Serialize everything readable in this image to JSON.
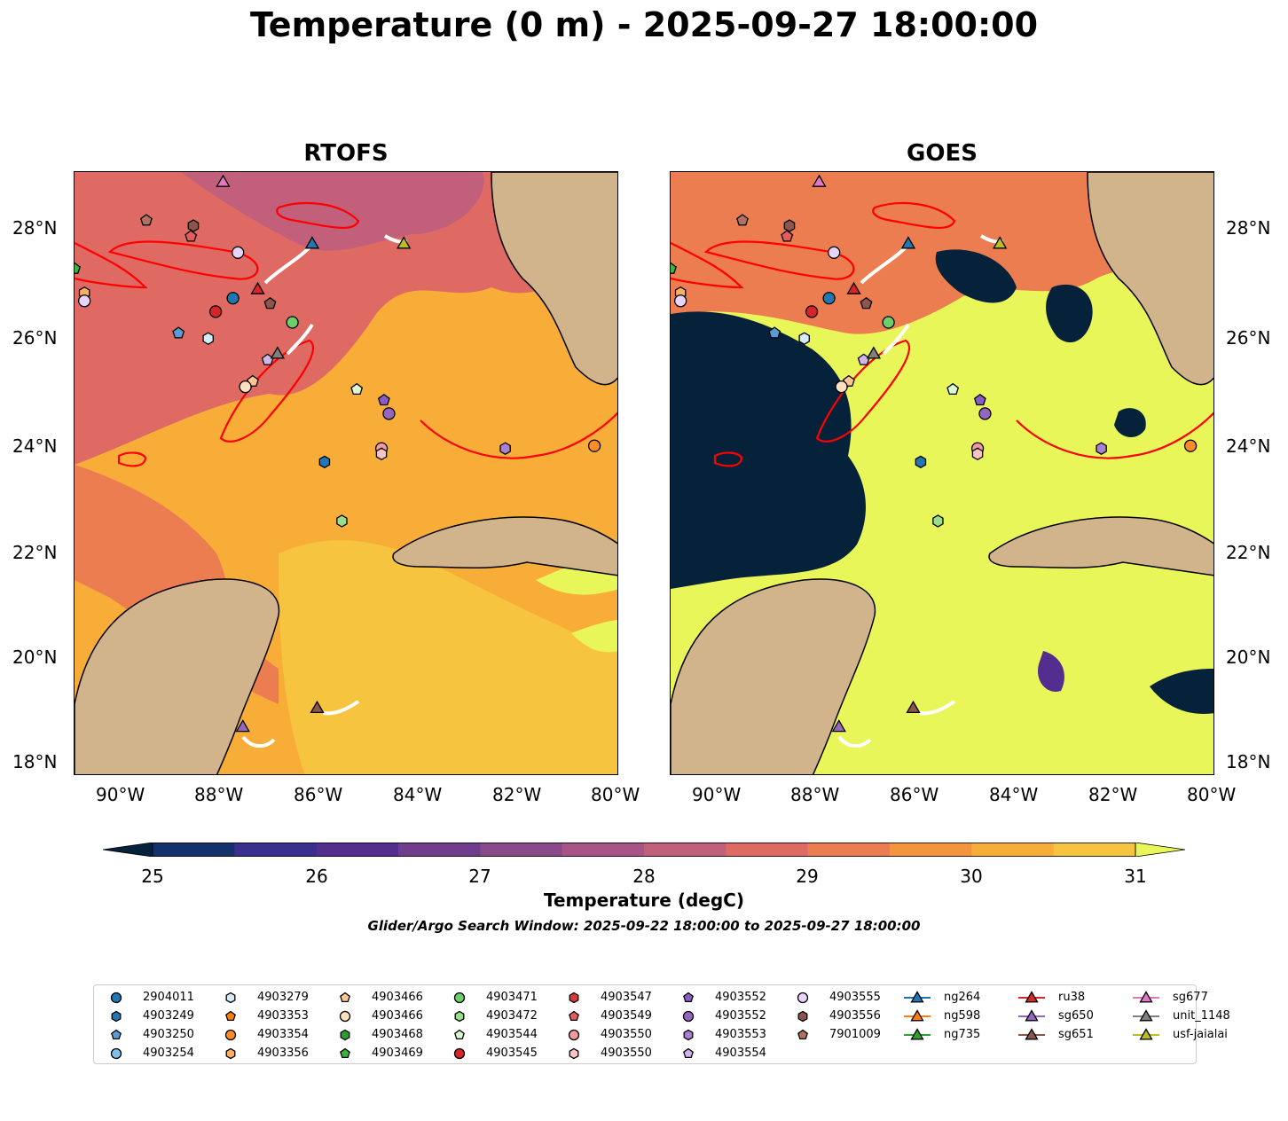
{
  "title": "Temperature (0 m) - 2025-09-27 18:00:00",
  "panels": [
    {
      "name": "RTOFS"
    },
    {
      "name": "GOES"
    }
  ],
  "axes": {
    "x_ticks": [
      "90°W",
      "88°W",
      "86°W",
      "84°W",
      "82°W",
      "80°W"
    ],
    "y_ticks": [
      "28°N",
      "26°N",
      "24°N",
      "22°N",
      "20°N",
      "18°N"
    ]
  },
  "colorbar": {
    "label": "Temperature (degC)",
    "ticks": [
      "25",
      "26",
      "27",
      "28",
      "29",
      "30",
      "31"
    ],
    "range": [
      25,
      31
    ],
    "colors": [
      "#06223a",
      "#13316b",
      "#3a2f8e",
      "#532e8f",
      "#6f3d8b",
      "#8a4a8a",
      "#a85487",
      "#c25f7a",
      "#de6a63",
      "#ec7d50",
      "#f4953d",
      "#f7ad38",
      "#f7c43f",
      "#e9f65a"
    ]
  },
  "search_window": "Glider/Argo Search Window: 2025-09-22 18:00:00 to 2025-09-27 18:00:00",
  "legend": [
    {
      "label": "2904011",
      "marker": "circle",
      "color": "#1f77b4"
    },
    {
      "label": "4903249",
      "marker": "hexagon",
      "color": "#1f77b4"
    },
    {
      "label": "4903250",
      "marker": "pentagon",
      "color": "#5a9bd5"
    },
    {
      "label": "4903254",
      "marker": "circle",
      "color": "#7fbfe8"
    },
    {
      "label": "4903279",
      "marker": "hexagon",
      "color": "#d6ecfa"
    },
    {
      "label": "4903353",
      "marker": "pentagon",
      "color": "#ff7f0e"
    },
    {
      "label": "4903354",
      "marker": "circle",
      "color": "#ff8c28"
    },
    {
      "label": "4903356",
      "marker": "hexagon",
      "color": "#ffae62"
    },
    {
      "label": "4903466",
      "marker": "pentagon",
      "color": "#ffc890"
    },
    {
      "label": "4903466",
      "marker": "circle",
      "color": "#ffe0c0"
    },
    {
      "label": "4903468",
      "marker": "hexagon",
      "color": "#2ca02c"
    },
    {
      "label": "4903469",
      "marker": "pentagon",
      "color": "#3cb43c"
    },
    {
      "label": "4903471",
      "marker": "circle",
      "color": "#6ccf6c"
    },
    {
      "label": "4903472",
      "marker": "hexagon",
      "color": "#98df8a"
    },
    {
      "label": "4903544",
      "marker": "pentagon",
      "color": "#dcf7d2"
    },
    {
      "label": "4903545",
      "marker": "circle",
      "color": "#d62728"
    },
    {
      "label": "4903547",
      "marker": "hexagon",
      "color": "#d83a3a"
    },
    {
      "label": "4903549",
      "marker": "pentagon",
      "color": "#e35d5d"
    },
    {
      "label": "4903550",
      "marker": "circle",
      "color": "#f09c9c"
    },
    {
      "label": "4903550",
      "marker": "hexagon",
      "color": "#f9c4c4"
    },
    {
      "label": "4903552",
      "marker": "pentagon",
      "color": "#8a5cc4"
    },
    {
      "label": "4903552",
      "marker": "circle",
      "color": "#9467bd"
    },
    {
      "label": "4903553",
      "marker": "hexagon",
      "color": "#a981d2"
    },
    {
      "label": "4903554",
      "marker": "pentagon",
      "color": "#d1b6ee"
    },
    {
      "label": "4903555",
      "marker": "circle",
      "color": "#e7d4fa"
    },
    {
      "label": "4903556",
      "marker": "hexagon",
      "color": "#8c564b"
    },
    {
      "label": "7901009",
      "marker": "pentagon",
      "color": "#b0735f"
    },
    {
      "label": "ng264",
      "marker": "triangle",
      "color": "#1f77b4"
    },
    {
      "label": "ng598",
      "marker": "triangle",
      "color": "#ff7f0e"
    },
    {
      "label": "ng735",
      "marker": "triangle",
      "color": "#2ca02c"
    },
    {
      "label": "ru38",
      "marker": "triangle",
      "color": "#d62728"
    },
    {
      "label": "sg650",
      "marker": "triangle",
      "color": "#9467bd"
    },
    {
      "label": "sg651",
      "marker": "triangle",
      "color": "#8c564b"
    },
    {
      "label": "sg677",
      "marker": "triangle",
      "color": "#e377c2"
    },
    {
      "label": "unit_1148",
      "marker": "triangle",
      "color": "#7f7f7f"
    },
    {
      "label": "usf-jaialai",
      "marker": "triangle",
      "color": "#bcbd22"
    }
  ],
  "map_data": {
    "extent": {
      "lon": [
        -91,
        -80
      ],
      "lat": [
        17.75,
        29
      ]
    },
    "points": [
      {
        "label": "2904011",
        "lon": -87.8,
        "lat": 26.65,
        "marker": "circle",
        "color": "#1f77b4"
      },
      {
        "label": "4903249",
        "lon": -85.95,
        "lat": 23.6,
        "marker": "hexagon",
        "color": "#1f77b4"
      },
      {
        "label": "4903250",
        "lon": -88.9,
        "lat": 26.0,
        "marker": "pentagon",
        "color": "#5a9bd5"
      },
      {
        "label": "4903279",
        "lon": -88.3,
        "lat": 25.9,
        "marker": "hexagon",
        "color": "#d6ecfa"
      },
      {
        "label": "4903354",
        "lon": -80.5,
        "lat": 23.9,
        "marker": "circle",
        "color": "#ff8c28"
      },
      {
        "label": "4903356",
        "lon": -90.8,
        "lat": 26.75,
        "marker": "hexagon",
        "color": "#ffae62"
      },
      {
        "label": "4903466",
        "lon": -87.4,
        "lat": 25.1,
        "marker": "pentagon",
        "color": "#ffc890"
      },
      {
        "label": "4903466",
        "lon": -87.55,
        "lat": 25.0,
        "marker": "circle",
        "color": "#ffe0c0"
      },
      {
        "label": "4903469",
        "lon": -91.0,
        "lat": 27.2,
        "marker": "pentagon",
        "color": "#3cb43c"
      },
      {
        "label": "4903471",
        "lon": -86.6,
        "lat": 26.2,
        "marker": "circle",
        "color": "#6ccf6c"
      },
      {
        "label": "4903472",
        "lon": -85.6,
        "lat": 22.5,
        "marker": "hexagon",
        "color": "#98df8a"
      },
      {
        "label": "4903544",
        "lon": -85.3,
        "lat": 24.95,
        "marker": "pentagon",
        "color": "#dcf7d2"
      },
      {
        "label": "4903545",
        "lon": -88.15,
        "lat": 26.4,
        "marker": "circle",
        "color": "#d62728"
      },
      {
        "label": "4903549",
        "lon": -88.65,
        "lat": 27.8,
        "marker": "pentagon",
        "color": "#e35d5d"
      },
      {
        "label": "4903550",
        "lon": -84.8,
        "lat": 23.85,
        "marker": "circle",
        "color": "#f09c9c"
      },
      {
        "label": "4903550",
        "lon": -84.8,
        "lat": 23.75,
        "marker": "hexagon",
        "color": "#f9c4c4"
      },
      {
        "label": "4903552",
        "lon": -84.75,
        "lat": 24.75,
        "marker": "pentagon",
        "color": "#8a5cc4"
      },
      {
        "label": "4903552",
        "lon": -84.65,
        "lat": 24.5,
        "marker": "circle",
        "color": "#9467bd"
      },
      {
        "label": "4903553",
        "lon": -82.3,
        "lat": 23.85,
        "marker": "hexagon",
        "color": "#a981d2"
      },
      {
        "label": "4903554",
        "lon": -87.1,
        "lat": 25.5,
        "marker": "pentagon",
        "color": "#d1b6ee"
      },
      {
        "label": "4903555",
        "lon": -87.7,
        "lat": 27.5,
        "marker": "circle",
        "color": "#e7d4fa"
      },
      {
        "label": "4903555",
        "lon": -90.8,
        "lat": 26.6,
        "marker": "circle",
        "color": "#e7d4fa"
      },
      {
        "label": "4903556",
        "lon": -88.6,
        "lat": 28.0,
        "marker": "hexagon",
        "color": "#8c564b"
      },
      {
        "label": "7901009",
        "lon": -89.55,
        "lat": 28.1,
        "marker": "pentagon",
        "color": "#b0735f"
      },
      {
        "label": "7901009",
        "lon": -87.05,
        "lat": 26.55,
        "marker": "pentagon",
        "color": "#8c564b"
      },
      {
        "label": "ng264",
        "lon": -86.2,
        "lat": 27.65,
        "marker": "triangle",
        "color": "#1f77b4"
      },
      {
        "label": "ru38",
        "lon": -87.3,
        "lat": 26.8,
        "marker": "triangle",
        "color": "#d62728"
      },
      {
        "label": "sg650",
        "lon": -87.6,
        "lat": 18.65,
        "marker": "triangle",
        "color": "#9467bd"
      },
      {
        "label": "sg651",
        "lon": -86.1,
        "lat": 19.0,
        "marker": "triangle",
        "color": "#8c564b"
      },
      {
        "label": "sg677",
        "lon": -88.0,
        "lat": 28.8,
        "marker": "triangle",
        "color": "#e377c2"
      },
      {
        "label": "unit_1148",
        "lon": -86.9,
        "lat": 25.6,
        "marker": "triangle",
        "color": "#7f7f7f"
      },
      {
        "label": "usf-jaialai",
        "lon": -84.35,
        "lat": 27.65,
        "marker": "triangle",
        "color": "#bcbd22"
      }
    ]
  }
}
